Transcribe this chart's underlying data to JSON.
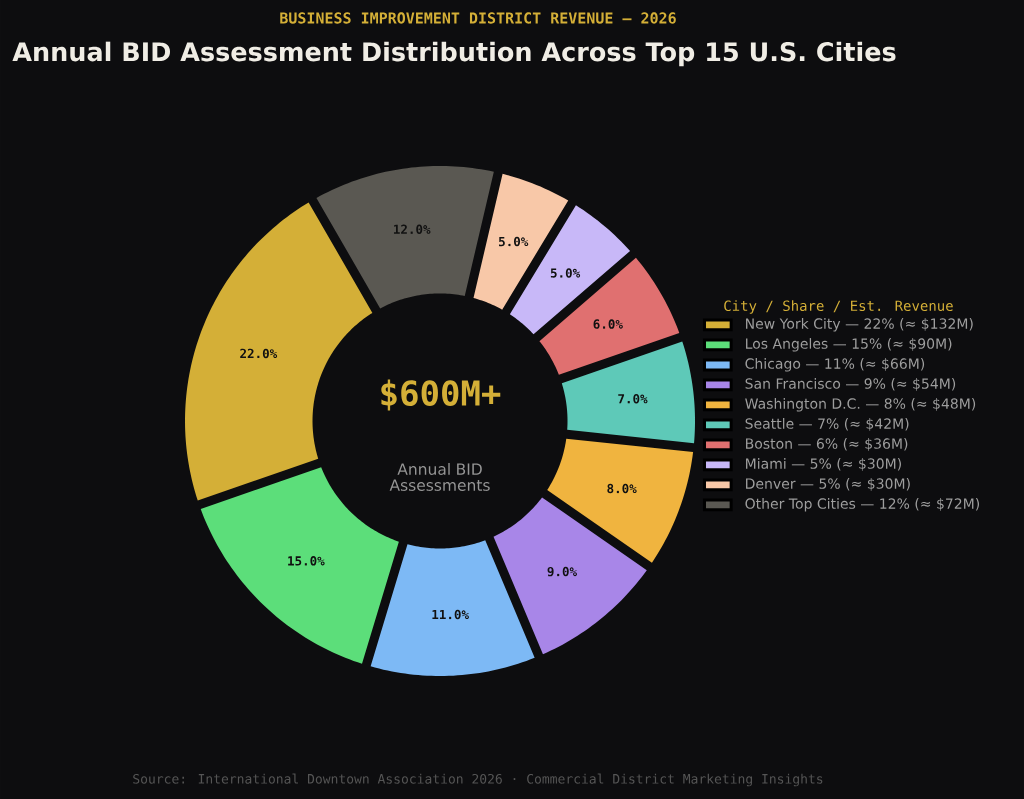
{
  "chart_data": {
    "type": "donut",
    "subtitle": "BUSINESS IMPROVEMENT DISTRICT REVENUE — 2026",
    "title": "Annual BID Assessment Distribution Across Top 15 U.S. Cities",
    "legend_title": "City / Share / Est. Revenue",
    "categories": [
      "New York City — 22% (≈ $132M)",
      "Los Angeles — 15% (≈ $90M)",
      "Chicago — 11% (≈ $66M)",
      "San Francisco — 9% (≈ $54M)",
      "Washington D.C. — 8% (≈ $48M)",
      "Seattle — 7% (≈ $42M)",
      "Boston — 6% (≈ $36M)",
      "Miami — 5% (≈ $30M)",
      "Denver — 5% (≈ $30M)",
      "Other Top Cities — 12% (≈ $72M)"
    ],
    "values": [
      22,
      15,
      11,
      9,
      8,
      7,
      6,
      5,
      5,
      12
    ],
    "colors": [
      "#d4af37",
      "#5cde7a",
      "#7db9f5",
      "#a886e8",
      "#f0b43f",
      "#5ec9b8",
      "#e07070",
      "#c8b8f8",
      "#f8c8a8",
      "#5a5852"
    ],
    "value_labels": [
      "22.0%",
      "15.0%",
      "11.0%",
      "9.0%",
      "8.0%",
      "7.0%",
      "6.0%",
      "5.0%",
      "5.0%",
      "12.0%"
    ],
    "legend": "right",
    "annotations": [
      "$600M+",
      "Annual BID Assessments",
      "Source: International Downtown Association 2026 · Commercial District Marketing Insights"
    ]
  }
}
